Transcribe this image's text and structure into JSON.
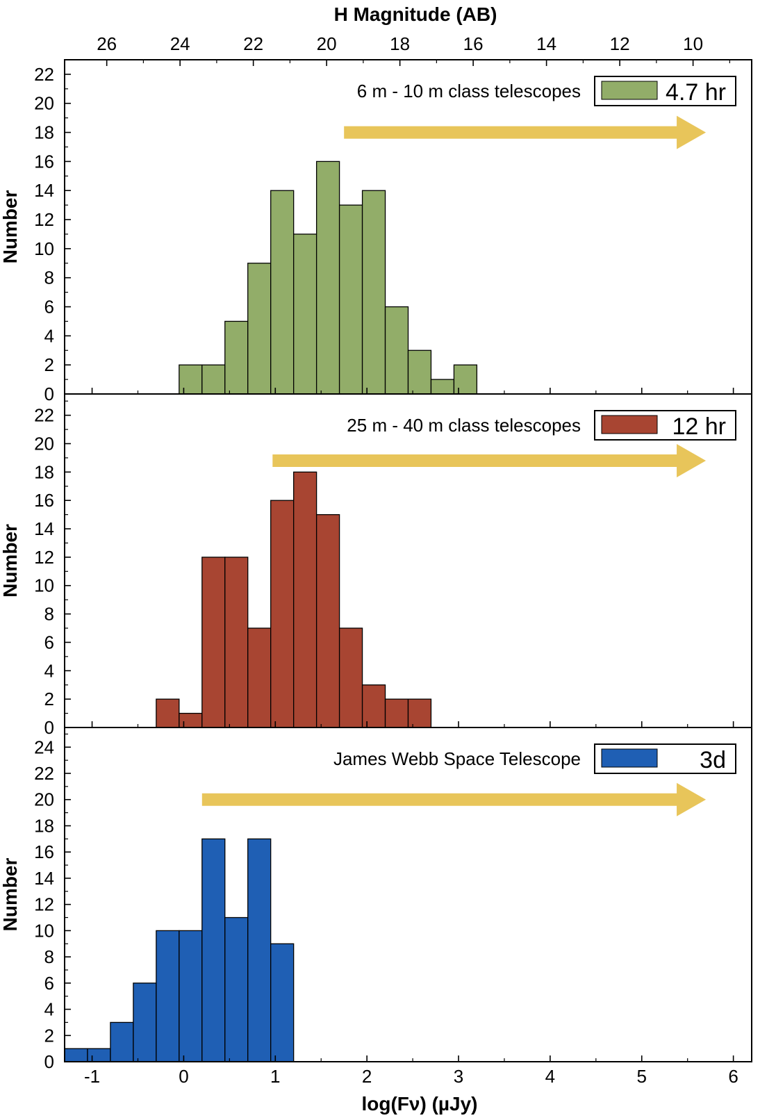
{
  "chart_data": {
    "type": "bar",
    "top_axis": {
      "title": "H Magnitude (AB)",
      "ticks": [
        26,
        24,
        22,
        20,
        18,
        16,
        14,
        12,
        10
      ]
    },
    "xlabel": "log(Fν) (µJy)",
    "xlim": [
      -1.3,
      6.2
    ],
    "xticks": [
      -1,
      0,
      1,
      2,
      3,
      4,
      5,
      6
    ],
    "xtick_labels": [
      "-1",
      "0",
      "1",
      "2",
      "3",
      "4",
      "5",
      "6"
    ],
    "bin_width": 0.25,
    "panels": [
      {
        "ylabel": "Number",
        "ylim": [
          0,
          23
        ],
        "yticks": [
          0,
          2,
          4,
          6,
          8,
          10,
          12,
          14,
          16,
          18,
          20,
          22
        ],
        "annotation": "6 m - 10 m class telescopes",
        "legend_label": "4.7 hr",
        "color": "#92ad69",
        "arrow_from_x": 1.75,
        "arrow_to_x": 5.7,
        "arrow_y": 18,
        "bins": [
          {
            "x": -0.05,
            "v": 2
          },
          {
            "x": 0.2,
            "v": 2
          },
          {
            "x": 0.45,
            "v": 5
          },
          {
            "x": 0.7,
            "v": 9
          },
          {
            "x": 0.95,
            "v": 14
          },
          {
            "x": 1.2,
            "v": 11
          },
          {
            "x": 1.45,
            "v": 16
          },
          {
            "x": 1.7,
            "v": 13
          },
          {
            "x": 1.95,
            "v": 14
          },
          {
            "x": 2.2,
            "v": 6
          },
          {
            "x": 2.45,
            "v": 3
          },
          {
            "x": 2.7,
            "v": 1
          },
          {
            "x": 2.95,
            "v": 2
          }
        ]
      },
      {
        "ylabel": "Number",
        "ylim": [
          0,
          23.5
        ],
        "yticks": [
          0,
          2,
          4,
          6,
          8,
          10,
          12,
          14,
          16,
          18,
          20,
          22
        ],
        "annotation": "25 m - 40 m class telescopes",
        "legend_label": "12 hr",
        "color": "#a84532",
        "arrow_from_x": 0.97,
        "arrow_to_x": 5.7,
        "arrow_y": 18.8,
        "bins": [
          {
            "x": -0.3,
            "v": 2
          },
          {
            "x": -0.05,
            "v": 1
          },
          {
            "x": 0.2,
            "v": 12
          },
          {
            "x": 0.45,
            "v": 12
          },
          {
            "x": 0.7,
            "v": 7
          },
          {
            "x": 0.95,
            "v": 16
          },
          {
            "x": 1.2,
            "v": 18
          },
          {
            "x": 1.45,
            "v": 15
          },
          {
            "x": 1.7,
            "v": 7
          },
          {
            "x": 1.95,
            "v": 3
          },
          {
            "x": 2.2,
            "v": 2
          },
          {
            "x": 2.45,
            "v": 2
          }
        ]
      },
      {
        "ylabel": "Number",
        "ylim": [
          0,
          25.5
        ],
        "yticks": [
          0,
          2,
          4,
          6,
          8,
          10,
          12,
          14,
          16,
          18,
          20,
          22,
          24
        ],
        "annotation": "James Webb Space Telescope",
        "legend_label": "3d",
        "color": "#1f5fb4",
        "arrow_from_x": 0.2,
        "arrow_to_x": 5.7,
        "arrow_y": 20,
        "bins": [
          {
            "x": -1.3,
            "v": 1
          },
          {
            "x": -1.05,
            "v": 1
          },
          {
            "x": -0.8,
            "v": 3
          },
          {
            "x": -0.55,
            "v": 6
          },
          {
            "x": -0.3,
            "v": 10
          },
          {
            "x": -0.05,
            "v": 10
          },
          {
            "x": 0.2,
            "v": 17
          },
          {
            "x": 0.45,
            "v": 11
          },
          {
            "x": 0.7,
            "v": 17
          },
          {
            "x": 0.95,
            "v": 9
          }
        ]
      }
    ],
    "arrow_color": "#e8c55a"
  }
}
